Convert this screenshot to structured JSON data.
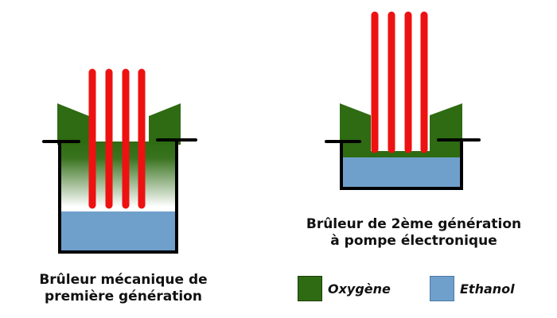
{
  "colors": {
    "oxygen": "#2e6b12",
    "ethanol": "#6fa0cc",
    "flame": "#ee1111",
    "outline": "#000000"
  },
  "burner_1": {
    "caption_line1": "Brûleur  mécanique de",
    "caption_line2": "première génération"
  },
  "burner_2": {
    "caption_line1": "Brûleur  de 2ème génération",
    "caption_line2": "à pompe électronique"
  },
  "legend": {
    "oxygen_label": "Oxygène",
    "ethanol_label": "Ethanol"
  }
}
